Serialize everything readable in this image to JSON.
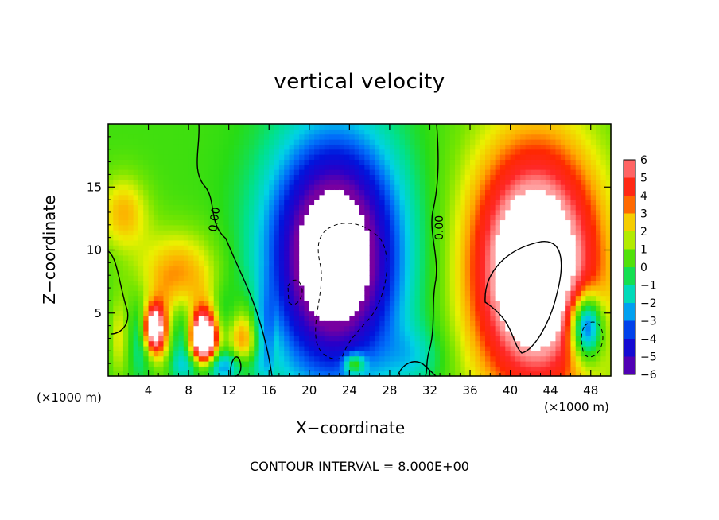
{
  "chart_data": {
    "type": "heatmap",
    "title": "vertical velocity",
    "xlabel": "X−coordinate",
    "ylabel": "Z−coordinate",
    "x_unit_note": "(×1000 m)",
    "xlim": [
      0,
      50
    ],
    "ylim": [
      0,
      20
    ],
    "x_ticks": [
      4,
      8,
      12,
      16,
      20,
      24,
      28,
      32,
      36,
      40,
      44,
      48
    ],
    "y_ticks": [
      5,
      10,
      15
    ],
    "colorbar": {
      "min": -6,
      "max": 6,
      "ticks": [
        "6",
        "5",
        "4",
        "3",
        "2",
        "1",
        "0",
        "−1",
        "−2",
        "−3",
        "−4",
        "−5",
        "−6"
      ]
    },
    "contour_label": "0.00",
    "contour_interval_text": "CONTOUR INTERVAL = 8.000E+00",
    "field_features": [
      {
        "kind": "downdraft",
        "x": 22.5,
        "z": 9.5,
        "rx": 6.5,
        "rz": 9.5,
        "strength": -9
      },
      {
        "kind": "updraft",
        "x": 42.5,
        "z": 8.5,
        "rx": 6.5,
        "rz": 10,
        "strength": 9
      },
      {
        "kind": "downdraft",
        "x": 47.5,
        "z": 4.0,
        "rx": 1.6,
        "rz": 2.6,
        "strength": -7
      },
      {
        "kind": "updraft",
        "x": 9.5,
        "z": 3.0,
        "rx": 1.2,
        "rz": 2.0,
        "strength": 7
      },
      {
        "kind": "updraft",
        "x": 4.5,
        "z": 3.8,
        "rx": 1.0,
        "rz": 1.8,
        "strength": 7
      },
      {
        "kind": "updraft",
        "x": 7.0,
        "z": 8.0,
        "rx": 4.0,
        "rz": 3.5,
        "strength": 3
      },
      {
        "kind": "updraft",
        "x": 1.5,
        "z": 13.0,
        "rx": 2.5,
        "rz": 3.0,
        "strength": 2.5
      },
      {
        "kind": "updraft",
        "x": 12.0,
        "z": 3.0,
        "rx": 3.0,
        "rz": 2.0,
        "strength": 2.5
      },
      {
        "kind": "downdraft",
        "x": 10.5,
        "z": 0.8,
        "rx": 4.0,
        "rz": 1.2,
        "strength": -2.5
      },
      {
        "kind": "downdraft",
        "x": 30.5,
        "z": 1.5,
        "rx": 3.0,
        "rz": 2.5,
        "strength": -1.5
      },
      {
        "kind": "updraft",
        "x": 24.5,
        "z": 1.0,
        "rx": 1.0,
        "rz": 0.8,
        "strength": 3.5
      }
    ]
  }
}
